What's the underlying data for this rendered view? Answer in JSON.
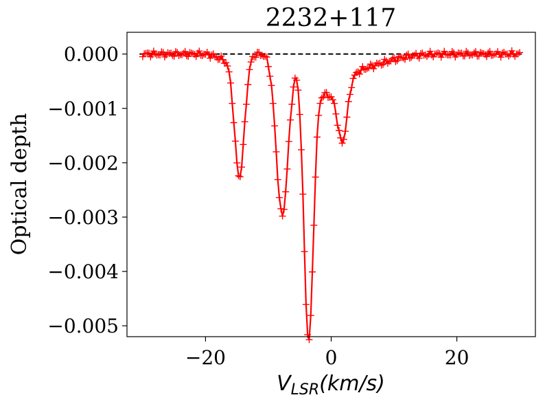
{
  "chart_data": {
    "type": "line",
    "title": "2232+117",
    "xlabel_main": "V",
    "xlabel_sub": "LSR",
    "xlabel_unit": "(km/s)",
    "ylabel": "Optical depth",
    "xlim": [
      -32.5,
      32.5
    ],
    "ylim": [
      -0.0052,
      0.0004
    ],
    "x_ticks": [
      -20,
      0,
      20
    ],
    "x_tick_labels": [
      "−20",
      "0",
      "20"
    ],
    "y_ticks": [
      0.0,
      -0.001,
      -0.002,
      -0.003,
      -0.004,
      -0.005
    ],
    "y_tick_labels": [
      "0.000",
      "−0.001",
      "−0.002",
      "−0.003",
      "−0.004",
      "−0.005"
    ],
    "reference_line": {
      "y": 0.0,
      "style": "dashed",
      "color": "#000000"
    },
    "series": [
      {
        "color": "#ff0000",
        "marker": "plus",
        "x_start": -30,
        "x_end": 30,
        "components": [
          {
            "center": -14.6,
            "amplitude": -0.00225,
            "sigma": 0.8
          },
          {
            "center": -7.8,
            "amplitude": -0.00295,
            "sigma": 0.95
          },
          {
            "center": -3.6,
            "amplitude": -0.0049,
            "sigma": 0.75
          },
          {
            "center": 1.8,
            "amplitude": -0.00105,
            "sigma": 0.75
          },
          {
            "center": -0.8,
            "amplitude": -0.0006,
            "sigma": 2.5
          },
          {
            "center": 4.0,
            "amplitude": -0.00025,
            "sigma": 4.5
          },
          {
            "center": -17.0,
            "amplitude": -0.0001,
            "sigma": 1.2
          }
        ]
      }
    ]
  }
}
